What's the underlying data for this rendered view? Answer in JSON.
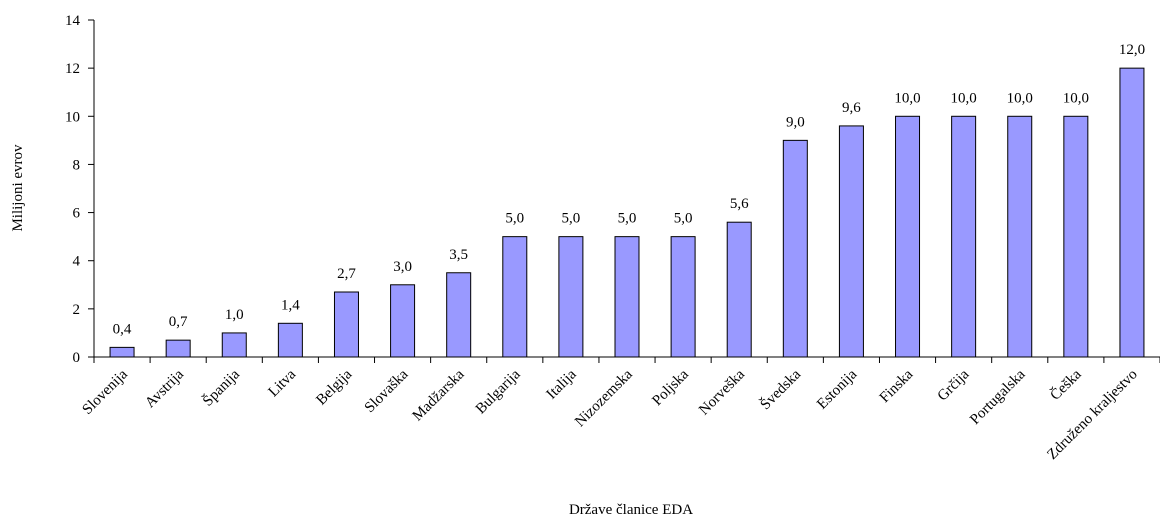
{
  "chart_data": {
    "type": "bar",
    "title": "",
    "xlabel": "Države članice EDA",
    "ylabel": "Milijoni evrov",
    "ylim": [
      0,
      14
    ],
    "yticks": [
      0,
      2,
      4,
      6,
      8,
      10,
      12,
      14
    ],
    "ytick_labels": [
      "0",
      "2",
      "4",
      "6",
      "8",
      "10",
      "12",
      "14"
    ],
    "grid": false,
    "legend": "none",
    "bar_color": "#9999ff",
    "categories": [
      "Slovenija",
      "Avstrija",
      "Španija",
      "Litva",
      "Belgija",
      "Slovaška",
      "Madžarska",
      "Bulgarija",
      "Italija",
      "Nizozemska",
      "Poljska",
      "Norveška",
      "Švedska",
      "Estonija",
      "Finska",
      "Grčija",
      "Portugalska",
      "Češka",
      "Združeno kraljestvo"
    ],
    "values": [
      0.4,
      0.7,
      1.0,
      1.4,
      2.7,
      3.0,
      3.5,
      5.0,
      5.0,
      5.0,
      5.0,
      5.6,
      9.0,
      9.6,
      10.0,
      10.0,
      10.0,
      10.0,
      12.0
    ],
    "data_labels": [
      "0,4",
      "0,7",
      "1,0",
      "1,4",
      "2,7",
      "3,0",
      "3,5",
      "5,0",
      "5,0",
      "5,0",
      "5,0",
      "5,6",
      "9,0",
      "9,6",
      "10,0",
      "10,0",
      "10,0",
      "10,0",
      "12,0"
    ]
  }
}
